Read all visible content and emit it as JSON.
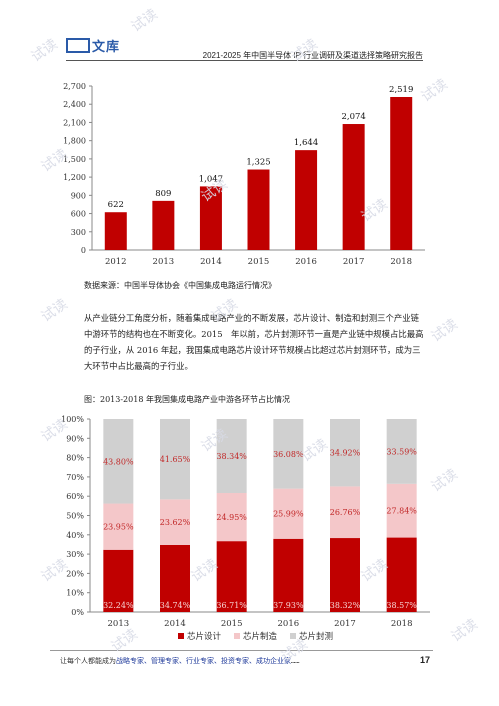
{
  "header": {
    "logo_text": "文库",
    "title": "2021-2025 年中国半导体 IP 行业调研及渠道选择策略研究报告"
  },
  "charts": {
    "bar": {
      "y_ticks": [
        "0",
        "300",
        "600",
        "900",
        "1,200",
        "1,500",
        "1,800",
        "2,100",
        "2,400",
        "2,700"
      ]
    },
    "stacked": {
      "y_ticks": [
        "0%",
        "10%",
        "20%",
        "30%",
        "40%",
        "50%",
        "60%",
        "70%",
        "80%",
        "90%",
        "100%"
      ],
      "legend_design": "芯片设计",
      "legend_manufacture": "芯片制造",
      "legend_package": "芯片封测"
    }
  },
  "chart_data": [
    {
      "type": "bar",
      "categories": [
        "2012",
        "2013",
        "2014",
        "2015",
        "2016",
        "2017",
        "2018"
      ],
      "values": [
        622,
        809,
        1047,
        1325,
        1644,
        2074,
        2519
      ],
      "value_labels": [
        "622",
        "809",
        "1,047",
        "1,325",
        "1,644",
        "2,074",
        "2,519"
      ],
      "ylim": [
        0,
        2700
      ],
      "color": "#c00000",
      "grid": false
    },
    {
      "type": "bar",
      "stacked": true,
      "categories": [
        "2013",
        "2014",
        "2015",
        "2016",
        "2017",
        "2018"
      ],
      "series": [
        {
          "name": "芯片设计",
          "values": [
            32.24,
            34.74,
            36.71,
            37.93,
            38.32,
            38.57
          ],
          "labels": [
            "32.24%",
            "34.74%",
            "36.71%",
            "37.93%",
            "38.32%",
            "38.57%"
          ],
          "color": "#c00000"
        },
        {
          "name": "芯片制造",
          "values": [
            23.95,
            23.62,
            24.95,
            25.99,
            26.76,
            27.84
          ],
          "labels": [
            "23.95%",
            "23.62%",
            "24.95%",
            "25.99%",
            "26.76%",
            "27.84%"
          ],
          "color": "#f4c7c9"
        },
        {
          "name": "芯片封测",
          "values": [
            43.8,
            41.65,
            38.34,
            36.08,
            34.92,
            33.59
          ],
          "labels": [
            "43.80%",
            "41.65%",
            "38.34%",
            "36.08%",
            "34.92%",
            "33.59%"
          ],
          "color": "#d0d0d0"
        }
      ],
      "ylim": [
        0,
        100
      ],
      "legend_position": "bottom",
      "grid": false
    }
  ],
  "text": {
    "source": "数据来源：中国半导体协会《中国集成电路运行情况》",
    "paragraph": "从产业链分工角度分析，随着集成电路产业的不断发展，芯片设计、制造和封测三个产业链中游环节的结构也在不断变化。2015　年以前，芯片封测环节一直是产业链中规模占比最高的子行业，从 2016 年起，我国集成电路芯片设计环节规模占比超过芯片封测环节，成为三大环节中占比最高的子行业。",
    "figure_caption": "图：2013-2018 年我国集成电路产业中游各环节占比情况"
  },
  "footer": {
    "lead": "让每个人都能成为",
    "roles": "战略专家、管理专家、行业专家、投资专家、成功企业家",
    "ellipsis": "……",
    "page": "17"
  },
  "watermark": "试读"
}
